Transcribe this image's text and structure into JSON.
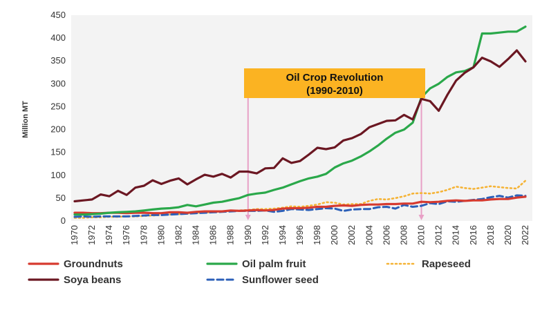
{
  "chart_data": {
    "type": "line",
    "xlabel": "",
    "ylabel": "Million MT",
    "xlim": [
      1970,
      2022
    ],
    "ylim": [
      0,
      450
    ],
    "yticks": [
      0,
      50,
      100,
      150,
      200,
      250,
      300,
      350,
      400,
      450
    ],
    "xticks": [
      1970,
      1972,
      1974,
      1976,
      1978,
      1980,
      1982,
      1984,
      1986,
      1988,
      1990,
      1992,
      1994,
      1996,
      1998,
      2000,
      2002,
      2004,
      2006,
      2008,
      2010,
      2012,
      2014,
      2016,
      2018,
      2020,
      2022
    ],
    "grid": false,
    "legend_position": "bottom",
    "annotation": {
      "lines": [
        "Oil Crop Revolution",
        "(1990-2010)"
      ],
      "start": 1990,
      "end": 2010,
      "box_color": "#fbb322",
      "marker_color": "#e8a0c6"
    },
    "x": [
      1970,
      1971,
      1972,
      1973,
      1974,
      1975,
      1976,
      1977,
      1978,
      1979,
      1980,
      1981,
      1982,
      1983,
      1984,
      1985,
      1986,
      1987,
      1988,
      1989,
      1990,
      1991,
      1992,
      1993,
      1994,
      1995,
      1996,
      1997,
      1998,
      1999,
      2000,
      2001,
      2002,
      2003,
      2004,
      2005,
      2006,
      2007,
      2008,
      2009,
      2010,
      2011,
      2012,
      2013,
      2014,
      2015,
      2016,
      2017,
      2018,
      2019,
      2020,
      2021,
      2022
    ],
    "series": [
      {
        "name": "Groundnuts",
        "color": "#d63a2f",
        "style": "solid",
        "values": [
          18,
          18,
          17,
          17,
          18,
          18,
          17,
          18,
          18,
          17,
          17,
          19,
          19,
          18,
          20,
          21,
          21,
          21,
          23,
          22,
          23,
          24,
          23,
          24,
          27,
          28,
          28,
          29,
          31,
          31,
          33,
          34,
          33,
          35,
          36,
          36,
          37,
          37,
          38,
          38,
          42,
          41,
          42,
          44,
          45,
          44,
          45,
          45,
          47,
          48,
          48,
          51,
          53
        ]
      },
      {
        "name": "Oil palm fruit",
        "color": "#2aa84a",
        "style": "solid",
        "values": [
          14,
          14,
          15,
          16,
          18,
          19,
          20,
          21,
          23,
          25,
          27,
          28,
          30,
          35,
          32,
          36,
          40,
          42,
          46,
          50,
          57,
          60,
          62,
          68,
          73,
          80,
          87,
          93,
          97,
          103,
          117,
          126,
          132,
          141,
          152,
          165,
          180,
          193,
          200,
          215,
          270,
          290,
          300,
          315,
          325,
          328,
          336,
          410,
          410,
          412,
          414,
          414,
          425
        ]
      },
      {
        "name": "Rapeseed",
        "color": "#f5b335",
        "style": "dotted",
        "values": [
          7,
          7,
          8,
          8,
          9,
          9,
          10,
          10,
          11,
          12,
          13,
          14,
          15,
          16,
          17,
          19,
          19,
          21,
          22,
          23,
          24,
          26,
          26,
          27,
          29,
          32,
          31,
          33,
          36,
          41,
          40,
          36,
          37,
          37,
          44,
          48,
          47,
          50,
          54,
          60,
          61,
          60,
          63,
          68,
          75,
          72,
          70,
          73,
          76,
          74,
          72,
          71,
          88
        ]
      },
      {
        "name": "Soya beans",
        "color": "#6b1722",
        "style": "solid",
        "values": [
          43,
          45,
          47,
          58,
          54,
          66,
          57,
          73,
          77,
          89,
          81,
          88,
          93,
          80,
          91,
          101,
          97,
          103,
          95,
          108,
          108,
          104,
          115,
          116,
          137,
          127,
          131,
          145,
          160,
          157,
          161,
          176,
          181,
          190,
          205,
          212,
          219,
          220,
          232,
          222,
          267,
          262,
          241,
          276,
          307,
          324,
          336,
          357,
          349,
          337,
          354,
          373,
          349
        ]
      },
      {
        "name": "Sunflower seed",
        "color": "#2b5fb8",
        "style": "dashed",
        "values": [
          9,
          10,
          9,
          10,
          10,
          10,
          10,
          11,
          12,
          13,
          13,
          14,
          15,
          16,
          17,
          18,
          19,
          20,
          21,
          22,
          22,
          22,
          23,
          20,
          22,
          26,
          25,
          24,
          26,
          28,
          27,
          22,
          25,
          26,
          26,
          30,
          31,
          27,
          35,
          31,
          33,
          39,
          37,
          43,
          42,
          44,
          46,
          48,
          52,
          55,
          51,
          56,
          55
        ]
      }
    ]
  }
}
